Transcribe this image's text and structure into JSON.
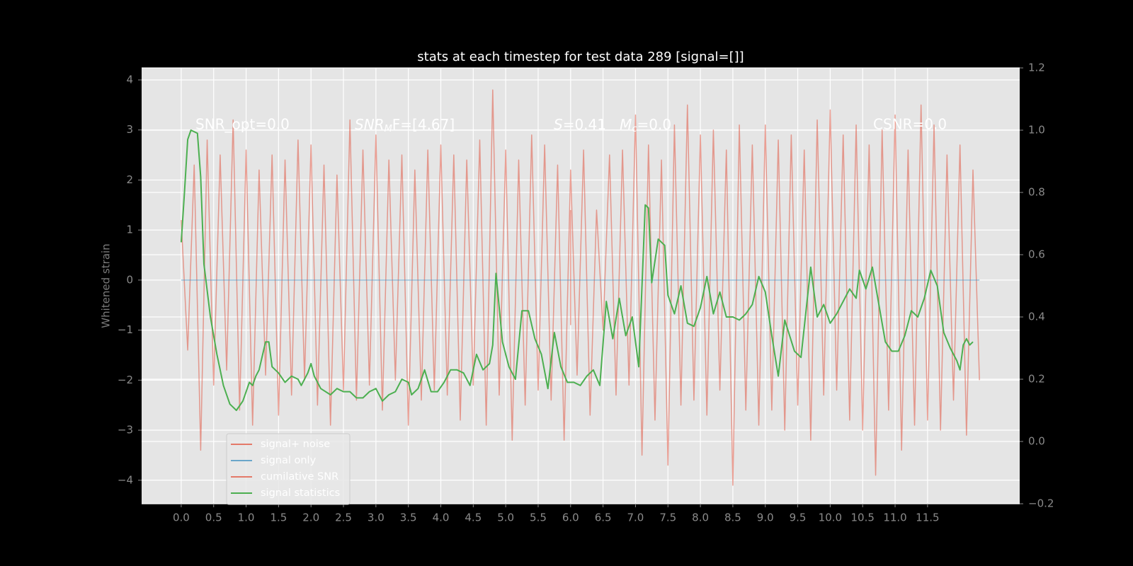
{
  "chart_data": {
    "type": "line",
    "title": "stats at each timestep for test data 289 [signal=[]]",
    "ylabel": "Whitened strain",
    "xlim": [
      -0.61,
      12.92
    ],
    "ylim": [
      -4.47,
      4.24
    ],
    "y2lim": [
      -0.2,
      1.2
    ],
    "xticks": [
      {
        "value": 0,
        "label": "0.0"
      },
      0.5,
      {
        "value": 1,
        "label": "1.0"
      },
      1.5,
      {
        "value": 2,
        "label": "2.0"
      },
      2.5,
      {
        "value": 3,
        "label": "3.0"
      },
      3.5,
      {
        "value": 4,
        "label": "4.0"
      },
      4.5,
      {
        "value": 5,
        "label": "5.0"
      },
      5.5,
      {
        "value": 6,
        "label": "6.0"
      },
      6.5,
      {
        "value": 7,
        "label": "7.0"
      },
      7.5,
      {
        "value": 8,
        "label": "8.0"
      },
      8.5,
      {
        "value": 9,
        "label": "9.0"
      },
      9.5,
      {
        "value": 10,
        "label": "10.0"
      },
      10.5,
      {
        "value": 11,
        "label": "11.0"
      },
      11.5
    ],
    "yticks": [
      {
        "value": -4,
        "label": "−4"
      },
      {
        "value": -3,
        "label": "−3"
      },
      {
        "value": -2,
        "label": "−2"
      },
      {
        "value": -1,
        "label": "−1"
      },
      0,
      1,
      2,
      3,
      4
    ],
    "y2ticks": [
      {
        "value": -0.2,
        "label": "−0.2"
      },
      {
        "value": 0,
        "label": "0.0"
      },
      0.2,
      0.4,
      0.6,
      0.8,
      {
        "value": 1,
        "label": "1.0"
      },
      1.2
    ],
    "grid": true,
    "legend": "lower left",
    "annotations": [
      "SNR_opt=0.0",
      [
        "SNR",
        "M",
        "F=[4.67]"
      ],
      [
        "S",
        "=0.41   ",
        "M",
        "c",
        "=0.0"
      ],
      "CSNR=0.0"
    ],
    "series": [
      {
        "name": "signal+ noise",
        "color": "#e24a33",
        "alpha": 0.5,
        "x": [
          0,
          0.1,
          0.2,
          0.3,
          0.4,
          0.5,
          0.6,
          0.7,
          0.8,
          0.9,
          1,
          1.1,
          1.2,
          1.3,
          1.4,
          1.5,
          1.6,
          1.7,
          1.8,
          1.9,
          2,
          2.1,
          2.2,
          2.3,
          2.4,
          2.5,
          2.6,
          2.7,
          2.8,
          2.9,
          3,
          3.1,
          3.2,
          3.3,
          3.4,
          3.5,
          3.6,
          3.7,
          3.8,
          3.9,
          4,
          4.1,
          4.2,
          4.3,
          4.4,
          4.5,
          4.6,
          4.7,
          4.8,
          4.9,
          5,
          5.1,
          5.2,
          5.3,
          5.4,
          5.5,
          5.6,
          5.7,
          5.8,
          5.9,
          6,
          6.1,
          6.2,
          6.3,
          6.4,
          6.5,
          6.6,
          6.7,
          6.8,
          6.9,
          7,
          7.1,
          7.2,
          7.3,
          7.4,
          7.5,
          7.6,
          7.7,
          7.8,
          7.9,
          8,
          8.1,
          8.2,
          8.3,
          8.4,
          8.5,
          8.6,
          8.7,
          8.8,
          8.9,
          9,
          9.1,
          9.2,
          9.3,
          9.4,
          9.5,
          9.6,
          9.7,
          9.8,
          9.9,
          10,
          10.1,
          10.2,
          10.3,
          10.4,
          10.5,
          10.6,
          10.7,
          10.8,
          10.9,
          11,
          11.1,
          11.2,
          11.3,
          11.4,
          11.5,
          11.6,
          11.7,
          11.8,
          11.9,
          12,
          12.1,
          12.2,
          12.3
        ],
        "values": [
          1.2,
          -1.4,
          2.3,
          -3.4,
          2.8,
          -2.1,
          2.5,
          -1.8,
          3.2,
          -2.6,
          2.6,
          -2.9,
          2.2,
          -1.9,
          2.5,
          -2.7,
          2.4,
          -2.3,
          2.8,
          -2.0,
          2.7,
          -2.5,
          2.3,
          -2.9,
          2.1,
          -2.2,
          3.2,
          -2.4,
          2.6,
          -2.1,
          2.9,
          -2.6,
          2.4,
          -2.0,
          2.5,
          -2.9,
          2.2,
          -2.4,
          2.6,
          -2.2,
          2.7,
          -2.3,
          2.5,
          -2.8,
          2.4,
          -2.1,
          2.8,
          -2.9,
          3.8,
          -2.3,
          2.6,
          -3.2,
          2.4,
          -2.5,
          2.9,
          -2.2,
          2.7,
          -2.4,
          2.3,
          -3.2,
          2.2,
          -1.9,
          2.6,
          -2.7,
          1.4,
          -1.0,
          2.5,
          -2.3,
          2.6,
          -2.1,
          3.3,
          -3.5,
          2.7,
          -2.8,
          2.4,
          -3.7,
          3.1,
          -2.5,
          3.5,
          -2.4,
          2.9,
          -2.7,
          3.0,
          -2.2,
          2.6,
          -4.1,
          3.1,
          -2.6,
          2.7,
          -2.9,
          3.1,
          -2.6,
          2.8,
          -3.0,
          2.9,
          -2.5,
          2.6,
          -3.2,
          3.2,
          -2.3,
          3.4,
          -2.2,
          2.9,
          -2.8,
          3.1,
          -3.0,
          2.7,
          -3.9,
          3.0,
          -2.6,
          3.3,
          -3.4,
          2.6,
          -2.9,
          3.5,
          -2.8,
          3.1,
          -3.0,
          2.5,
          -2.4,
          2.7,
          -3.1,
          2.2,
          -2.0
        ]
      },
      {
        "name": "signal only",
        "color": "#348abd",
        "alpha": 0.5,
        "x": [
          0,
          12.3
        ],
        "values": [
          0,
          0
        ]
      },
      {
        "name": "cumilative SNR",
        "color": "#e24a33",
        "alpha": 0.5,
        "x": [
          6,
          6
        ],
        "values": [
          1.4,
          -0.9
        ]
      },
      {
        "name": "signal statistics",
        "color": "#4caf50",
        "alpha": 1,
        "axis": "y2",
        "x": [
          0,
          0.05,
          0.1,
          0.15,
          0.25,
          0.3,
          0.35,
          0.45,
          0.55,
          0.65,
          0.75,
          0.85,
          0.95,
          1.05,
          1.1,
          1.15,
          1.2,
          1.3,
          1.35,
          1.4,
          1.5,
          1.6,
          1.7,
          1.8,
          1.85,
          1.95,
          2.0,
          2.05,
          2.15,
          2.3,
          2.4,
          2.5,
          2.6,
          2.7,
          2.8,
          2.9,
          3.0,
          3.1,
          3.2,
          3.3,
          3.4,
          3.5,
          3.55,
          3.65,
          3.75,
          3.85,
          3.95,
          4.05,
          4.15,
          4.25,
          4.35,
          4.45,
          4.55,
          4.65,
          4.75,
          4.8,
          4.85,
          4.95,
          5.05,
          5.15,
          5.25,
          5.35,
          5.45,
          5.55,
          5.65,
          5.75,
          5.85,
          5.95,
          6.05,
          6.15,
          6.25,
          6.35,
          6.45,
          6.55,
          6.65,
          6.75,
          6.85,
          6.95,
          7.05,
          7.15,
          7.2,
          7.25,
          7.35,
          7.45,
          7.5,
          7.6,
          7.7,
          7.8,
          7.9,
          8.0,
          8.1,
          8.2,
          8.3,
          8.4,
          8.5,
          8.6,
          8.7,
          8.8,
          8.9,
          9.0,
          9.1,
          9.2,
          9.3,
          9.45,
          9.55,
          9.7,
          9.8,
          9.9,
          10.0,
          10.1,
          10.2,
          10.3,
          10.4,
          10.45,
          10.55,
          10.65,
          10.75,
          10.85,
          10.95,
          11.05,
          11.15,
          11.25,
          11.35,
          11.45,
          11.55,
          11.65,
          11.75,
          11.85,
          11.95,
          12.0,
          12.05,
          12.1,
          12.15,
          12.2
        ],
        "values": [
          0.64,
          0.8,
          0.97,
          1.0,
          0.99,
          0.85,
          0.57,
          0.4,
          0.28,
          0.18,
          0.12,
          0.1,
          0.13,
          0.19,
          0.18,
          0.21,
          0.23,
          0.32,
          0.32,
          0.24,
          0.22,
          0.19,
          0.21,
          0.2,
          0.18,
          0.22,
          0.25,
          0.21,
          0.17,
          0.15,
          0.17,
          0.16,
          0.16,
          0.14,
          0.14,
          0.16,
          0.17,
          0.13,
          0.15,
          0.16,
          0.2,
          0.19,
          0.15,
          0.17,
          0.23,
          0.16,
          0.16,
          0.19,
          0.23,
          0.23,
          0.22,
          0.18,
          0.28,
          0.23,
          0.25,
          0.31,
          0.54,
          0.32,
          0.24,
          0.2,
          0.42,
          0.42,
          0.33,
          0.28,
          0.17,
          0.35,
          0.24,
          0.19,
          0.19,
          0.18,
          0.21,
          0.23,
          0.18,
          0.45,
          0.33,
          0.46,
          0.34,
          0.4,
          0.24,
          0.76,
          0.75,
          0.51,
          0.65,
          0.63,
          0.47,
          0.41,
          0.5,
          0.38,
          0.37,
          0.43,
          0.53,
          0.41,
          0.48,
          0.4,
          0.4,
          0.39,
          0.41,
          0.44,
          0.53,
          0.48,
          0.34,
          0.21,
          0.39,
          0.29,
          0.27,
          0.56,
          0.4,
          0.44,
          0.38,
          0.41,
          0.45,
          0.49,
          0.46,
          0.55,
          0.49,
          0.56,
          0.44,
          0.32,
          0.29,
          0.29,
          0.34,
          0.42,
          0.4,
          0.46,
          0.55,
          0.5,
          0.35,
          0.3,
          0.26,
          0.23,
          0.31,
          0.33,
          0.31,
          0.32
        ]
      }
    ]
  }
}
